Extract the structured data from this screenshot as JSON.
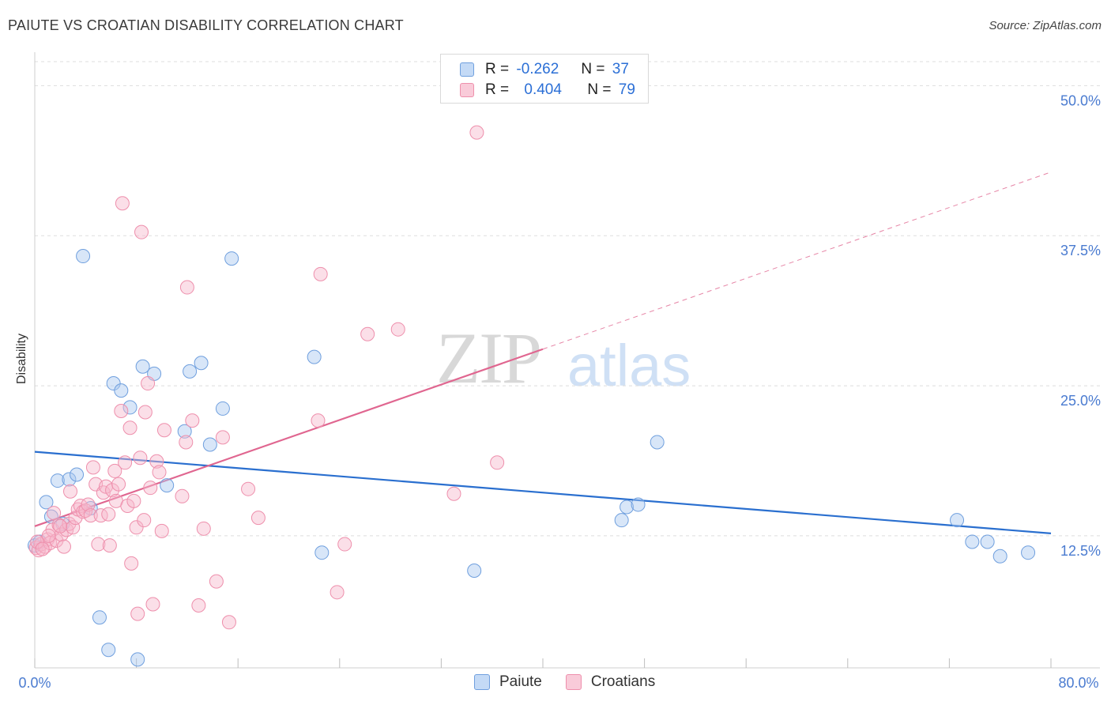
{
  "title": "PAIUTE VS CROATIAN DISABILITY CORRELATION CHART",
  "source": "Source: ZipAtlas.com",
  "watermark": {
    "zip": "ZIP",
    "atlas": "atlas"
  },
  "legend": {
    "paiute": {
      "r_label": "R =",
      "r_value": "-0.262",
      "n_label": "N =",
      "n_value": "37"
    },
    "croatians": {
      "r_label": "R =",
      "r_value": "0.404",
      "n_label": "N =",
      "n_value": "79"
    }
  },
  "bottom_legend": {
    "paiute": "Paiute",
    "croatians": "Croatians"
  },
  "colors": {
    "paiute_fill": "#a9c8f0",
    "paiute_stroke": "#6f9fde",
    "paiute_line": "#2a6fcf",
    "croatians_fill": "#f7b8cb",
    "croatians_stroke": "#ee8fac",
    "croatians_line": "#e06690",
    "tick_text": "#4a7bd0"
  },
  "chart_data": {
    "type": "scatter",
    "title": "PAIUTE VS CROATIAN DISABILITY CORRELATION CHART",
    "xlabel": "",
    "ylabel": "Disability",
    "xlim": [
      0,
      80
    ],
    "ylim": [
      1.5,
      52
    ],
    "x_tick_labels": [
      "0.0%",
      "80.0%"
    ],
    "y_ticks": [
      12.5,
      25.0,
      37.5,
      50.0
    ],
    "y_tick_labels": [
      "12.5%",
      "25.0%",
      "37.5%",
      "50.0%"
    ],
    "series": [
      {
        "name": "Paiute",
        "r": -0.262,
        "n": 37,
        "trend": {
          "x0": 0,
          "y0": 19.5,
          "x1": 80,
          "y1": 12.7,
          "dashed_from": null
        },
        "points": [
          [
            0.0,
            11.7
          ],
          [
            0.9,
            15.3
          ],
          [
            1.3,
            14.1
          ],
          [
            1.8,
            17.1
          ],
          [
            2.2,
            13.5
          ],
          [
            2.7,
            17.2
          ],
          [
            3.3,
            17.6
          ],
          [
            3.8,
            35.8
          ],
          [
            4.4,
            14.8
          ],
          [
            5.1,
            5.7
          ],
          [
            5.8,
            3.0
          ],
          [
            6.2,
            25.2
          ],
          [
            6.8,
            24.6
          ],
          [
            7.5,
            23.2
          ],
          [
            8.1,
            2.2
          ],
          [
            8.5,
            26.6
          ],
          [
            9.4,
            26.0
          ],
          [
            10.4,
            16.7
          ],
          [
            11.8,
            21.2
          ],
          [
            12.2,
            26.2
          ],
          [
            13.1,
            26.9
          ],
          [
            13.8,
            20.1
          ],
          [
            14.8,
            23.1
          ],
          [
            15.5,
            35.6
          ],
          [
            22.0,
            27.4
          ],
          [
            22.6,
            11.1
          ],
          [
            34.6,
            9.6
          ],
          [
            46.2,
            13.8
          ],
          [
            46.6,
            14.9
          ],
          [
            47.5,
            15.1
          ],
          [
            49.0,
            20.3
          ],
          [
            72.6,
            13.8
          ],
          [
            73.8,
            12.0
          ],
          [
            75.0,
            12.0
          ],
          [
            76.0,
            10.8
          ],
          [
            78.2,
            11.1
          ],
          [
            0.4,
            12.0
          ]
        ]
      },
      {
        "name": "Croatians",
        "r": 0.404,
        "n": 79,
        "trend": {
          "x0": 0,
          "y0": 13.3,
          "x1": 80,
          "y1": 42.8,
          "dashed_from": 40
        },
        "points": [
          [
            0.1,
            11.5
          ],
          [
            0.3,
            11.3
          ],
          [
            0.5,
            11.8
          ],
          [
            0.8,
            11.6
          ],
          [
            1.0,
            12.2
          ],
          [
            1.2,
            11.9
          ],
          [
            1.4,
            13.0
          ],
          [
            1.5,
            14.4
          ],
          [
            1.7,
            12.1
          ],
          [
            1.9,
            13.4
          ],
          [
            2.1,
            12.6
          ],
          [
            2.3,
            11.6
          ],
          [
            2.5,
            13.0
          ],
          [
            2.7,
            13.5
          ],
          [
            2.8,
            16.2
          ],
          [
            3.0,
            13.2
          ],
          [
            3.2,
            14.0
          ],
          [
            3.4,
            14.7
          ],
          [
            3.6,
            15.0
          ],
          [
            3.8,
            14.5
          ],
          [
            4.0,
            14.6
          ],
          [
            4.2,
            15.1
          ],
          [
            4.4,
            14.2
          ],
          [
            4.6,
            18.2
          ],
          [
            4.8,
            16.8
          ],
          [
            5.0,
            11.8
          ],
          [
            5.2,
            14.2
          ],
          [
            5.4,
            16.1
          ],
          [
            5.6,
            16.6
          ],
          [
            5.8,
            14.3
          ],
          [
            5.9,
            11.7
          ],
          [
            6.1,
            16.3
          ],
          [
            6.3,
            17.9
          ],
          [
            6.4,
            15.4
          ],
          [
            6.6,
            16.8
          ],
          [
            6.8,
            22.9
          ],
          [
            6.9,
            40.2
          ],
          [
            7.1,
            18.6
          ],
          [
            7.3,
            15.0
          ],
          [
            7.5,
            21.5
          ],
          [
            7.6,
            10.2
          ],
          [
            7.8,
            15.4
          ],
          [
            8.0,
            13.2
          ],
          [
            8.1,
            6.0
          ],
          [
            8.3,
            19.0
          ],
          [
            8.4,
            37.8
          ],
          [
            8.6,
            13.8
          ],
          [
            8.7,
            22.8
          ],
          [
            8.9,
            25.2
          ],
          [
            9.1,
            16.5
          ],
          [
            9.3,
            6.8
          ],
          [
            9.6,
            18.7
          ],
          [
            9.8,
            17.8
          ],
          [
            10.0,
            12.9
          ],
          [
            10.2,
            21.3
          ],
          [
            11.6,
            15.8
          ],
          [
            11.9,
            20.3
          ],
          [
            12.0,
            33.2
          ],
          [
            12.4,
            22.1
          ],
          [
            12.9,
            6.7
          ],
          [
            13.3,
            13.1
          ],
          [
            14.3,
            8.7
          ],
          [
            14.8,
            20.7
          ],
          [
            15.3,
            5.3
          ],
          [
            16.8,
            16.4
          ],
          [
            17.6,
            14.0
          ],
          [
            22.3,
            22.1
          ],
          [
            22.5,
            34.3
          ],
          [
            23.8,
            7.8
          ],
          [
            24.4,
            11.8
          ],
          [
            26.2,
            29.3
          ],
          [
            28.6,
            29.7
          ],
          [
            33.0,
            16.0
          ],
          [
            34.8,
            46.1
          ],
          [
            36.4,
            18.6
          ],
          [
            0.2,
            12.0
          ],
          [
            0.6,
            11.4
          ],
          [
            1.1,
            12.5
          ],
          [
            2.0,
            13.3
          ]
        ]
      }
    ]
  }
}
